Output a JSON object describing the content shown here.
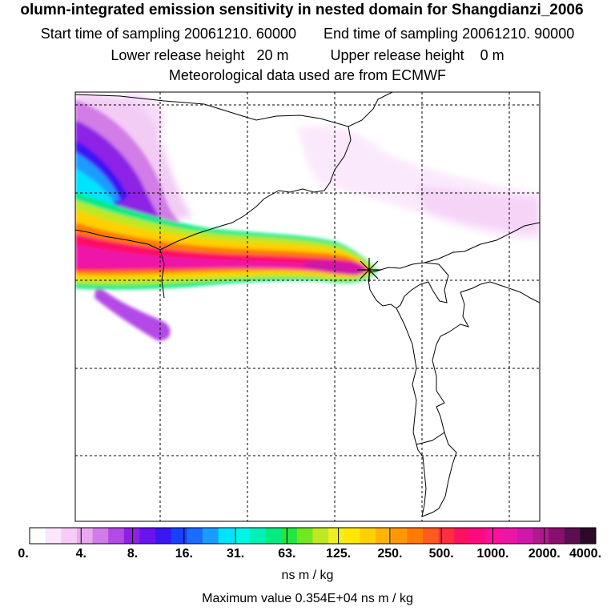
{
  "header": {
    "title": "olumn-integrated emission sensitivity in nested domain for Shangdianzi_2006",
    "start_time": "Start time of sampling 20061210. 60000",
    "end_time": "End time of sampling 20061210. 90000",
    "lower_release": "Lower release height   20 m",
    "upper_release": "Upper release height    0 m",
    "met_source": "Meteorological data used are from ECMWF"
  },
  "colorbar": {
    "labels": [
      "0.",
      "4.",
      "8.",
      "16.",
      "31.",
      "63.",
      "125.",
      "250.",
      "500.",
      "1000.",
      "2000.",
      "4000."
    ],
    "colors": [
      "#ffffff",
      "#fbe6fb",
      "#f6ccf6",
      "#eaa8ee",
      "#d27ce8",
      "#b34ae6",
      "#8e20e6",
      "#6a12f0",
      "#3a16f5",
      "#1a40ff",
      "#1a6cff",
      "#1a9cff",
      "#00e3ff",
      "#00f4e8",
      "#00f0b8",
      "#00ec80",
      "#20e840",
      "#70e820",
      "#c0e820",
      "#f0f020",
      "#ffe800",
      "#ffd000",
      "#ffb400",
      "#ff9800",
      "#ff7a00",
      "#ff5a20",
      "#ff2e40",
      "#ff1060",
      "#ff0a80",
      "#ff109c",
      "#ee14a8",
      "#d018a8",
      "#b0188e",
      "#8a1070",
      "#5a1050",
      "#2a0a28"
    ],
    "unit": "ns m / kg"
  },
  "footer": {
    "max_value": "Maximum value  0.354E+04 ns m / kg"
  },
  "map": {
    "release_site_icon": "x-star-marker"
  }
}
